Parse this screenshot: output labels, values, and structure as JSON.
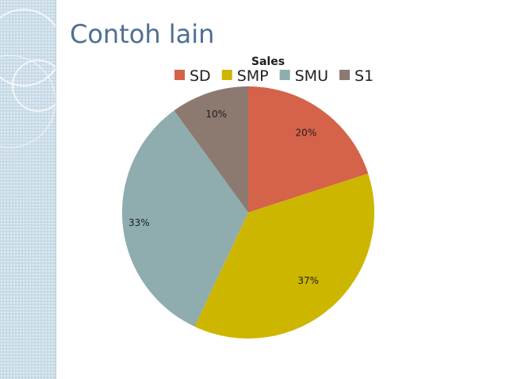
{
  "slide": {
    "title": "Contoh lain"
  },
  "chart_data": {
    "type": "pie",
    "title": "Sales",
    "legend_position": "top",
    "categories": [
      "SD",
      "SMP",
      "SMU",
      "S1"
    ],
    "values": [
      20,
      37,
      33,
      10
    ],
    "labels": [
      "20%",
      "37%",
      "33%",
      "10%"
    ],
    "colors": [
      "#d4634a",
      "#cdb600",
      "#8facae",
      "#8c7970"
    ],
    "start_angle_deg": 0,
    "direction": "clockwise"
  }
}
